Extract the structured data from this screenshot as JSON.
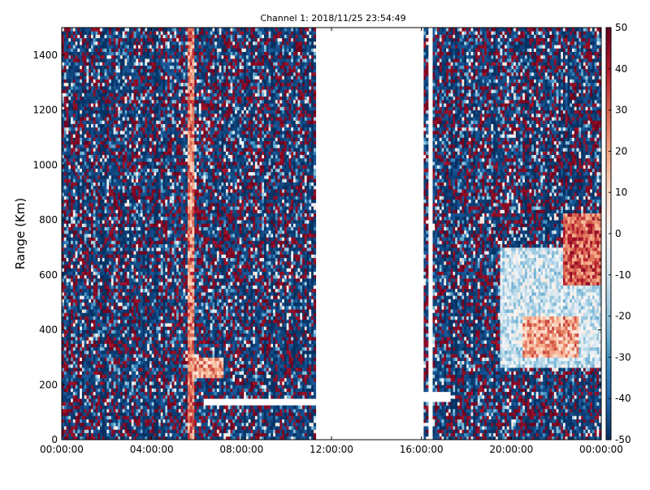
{
  "chart_data": {
    "type": "heatmap",
    "title": "Channel 1: 2018/11/25 23:54:49",
    "xlabel": "",
    "ylabel": "Range (Km)",
    "x_ticks": [
      "00:00:00",
      "04:00:00",
      "08:00:00",
      "12:00:00",
      "16:00:00",
      "20:00:00",
      "00:00:00"
    ],
    "x_tick_hours": [
      0,
      4,
      8,
      12,
      16,
      20,
      24
    ],
    "xlim_hours": [
      0,
      24
    ],
    "y_ticks": [
      0,
      200,
      400,
      600,
      800,
      1000,
      1200,
      1400
    ],
    "ylim": [
      0,
      1500
    ],
    "colorbar": {
      "ticks": [
        -50,
        -40,
        -30,
        -20,
        -10,
        0,
        10,
        20,
        30,
        40,
        50
      ],
      "range": [
        -50,
        50
      ],
      "colormap": "RdBu_r"
    },
    "data_gaps_hours": [
      [
        11.35,
        16.1
      ],
      [
        16.35,
        16.55
      ]
    ],
    "features": [
      {
        "hours": [
          5.6,
          5.95
        ],
        "range_km": [
          0,
          1500
        ],
        "value": 25
      },
      {
        "hours": [
          5.8,
          7.2
        ],
        "range_km": [
          220,
          300
        ],
        "value": 20
      },
      {
        "hours": [
          6.3,
          11.3
        ],
        "range_km": [
          130,
          150
        ],
        "value": null
      },
      {
        "hours": [
          16.1,
          17.3
        ],
        "range_km": [
          140,
          170
        ],
        "value": null
      },
      {
        "hours": [
          19.5,
          24
        ],
        "range_km": [
          260,
          700
        ],
        "value": -10
      },
      {
        "hours": [
          22.3,
          24
        ],
        "range_km": [
          560,
          820
        ],
        "value": 30
      },
      {
        "hours": [
          20.5,
          23.0
        ],
        "range_km": [
          300,
          450
        ],
        "value": 20
      }
    ]
  }
}
